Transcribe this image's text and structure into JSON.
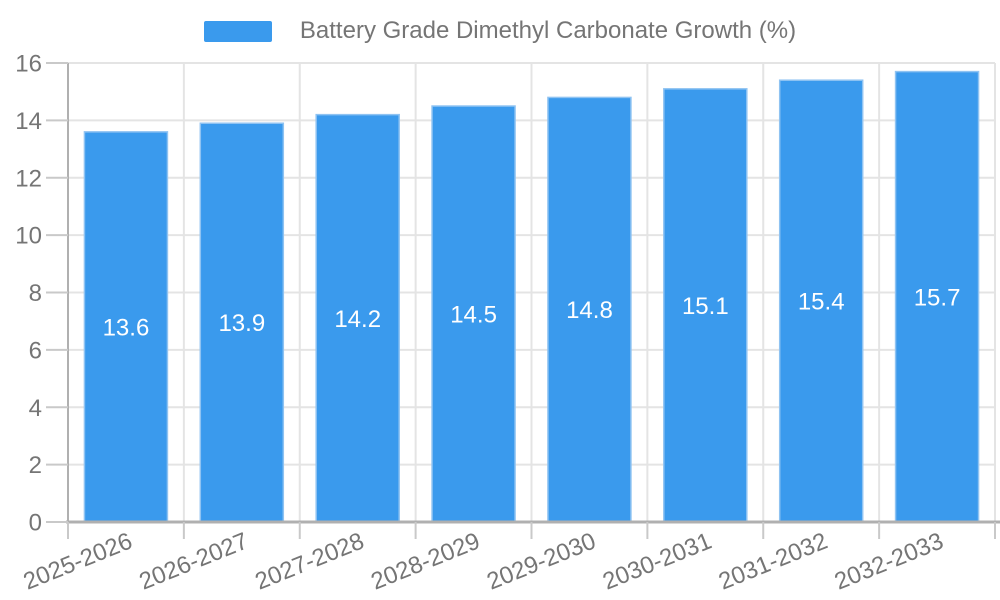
{
  "chart_data": {
    "type": "bar",
    "title": "",
    "xlabel": "",
    "ylabel": "",
    "legend": {
      "label": "Battery Grade Dimethyl Carbonate Growth (%)",
      "position": "top"
    },
    "categories": [
      "2025-2026",
      "2026-2027",
      "2027-2028",
      "2028-2029",
      "2029-2030",
      "2030-2031",
      "2031-2032",
      "2032-2033"
    ],
    "series": [
      {
        "name": "Battery Grade Dimethyl Carbonate Growth (%)",
        "values": [
          13.6,
          13.9,
          14.2,
          14.5,
          14.8,
          15.1,
          15.4,
          15.7
        ]
      }
    ],
    "value_labels": [
      "13.6",
      "13.9",
      "14.2",
      "14.5",
      "14.8",
      "15.1",
      "15.4",
      "15.7"
    ],
    "ylim": [
      0,
      16
    ],
    "yticks": [
      0,
      2,
      4,
      6,
      8,
      10,
      12,
      14,
      16
    ],
    "grid": true,
    "x_label_rotation_deg": -22,
    "colors": {
      "bar": "#3A9AED",
      "bar_edge": "#8FC3F2",
      "bar_value_text": "#FFFFFF",
      "axis_text": "#757575",
      "grid_line": "#E4E4E4",
      "axis_line": "#B0B0B0",
      "tick_mark": "#C9C9C9"
    }
  }
}
